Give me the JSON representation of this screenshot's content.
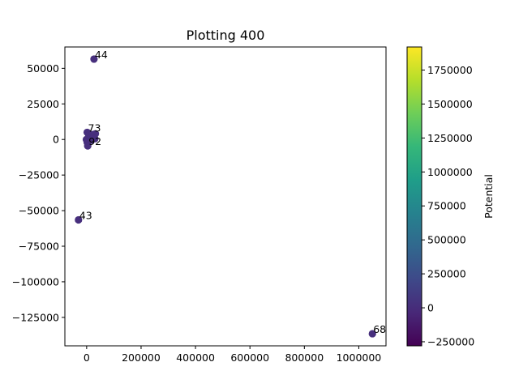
{
  "chart_data": {
    "type": "scatter",
    "title": "Plotting 400",
    "xlabel": "",
    "ylabel": "",
    "xlim": [
      -80000,
      1100000
    ],
    "ylim": [
      -145000,
      65000
    ],
    "xticks": [
      0,
      200000,
      400000,
      600000,
      800000,
      1000000
    ],
    "xtick_labels": [
      "0",
      "200000",
      "400000",
      "600000",
      "800000",
      "1000000"
    ],
    "yticks": [
      50000,
      25000,
      0,
      -25000,
      -50000,
      -75000,
      -100000,
      -125000
    ],
    "ytick_labels": [
      "50000",
      "25000",
      "0",
      "−25000",
      "−50000",
      "−75000",
      "−100000",
      "−125000"
    ],
    "marker_color": "#472f7d",
    "points": [
      {
        "x": 27000,
        "y": 56500,
        "label": "44"
      },
      {
        "x": -30000,
        "y": -56500,
        "label": "43"
      },
      {
        "x": 1050000,
        "y": -136500,
        "label": "68"
      },
      {
        "x": 2000,
        "y": 5000,
        "label": "73"
      },
      {
        "x": 8000,
        "y": 3000,
        "label": ""
      },
      {
        "x": 14000,
        "y": 1500,
        "label": ""
      },
      {
        "x": 20000,
        "y": 3500,
        "label": ""
      },
      {
        "x": 26000,
        "y": 2000,
        "label": ""
      },
      {
        "x": 32000,
        "y": 4000,
        "label": ""
      },
      {
        "x": 11000,
        "y": 500,
        "label": ""
      },
      {
        "x": 18000,
        "y": -500,
        "label": ""
      },
      {
        "x": 24000,
        "y": 1000,
        "label": ""
      },
      {
        "x": 30000,
        "y": 500,
        "label": ""
      },
      {
        "x": -1000,
        "y": 0,
        "label": ""
      },
      {
        "x": 2000,
        "y": -2000,
        "label": ""
      },
      {
        "x": 4000,
        "y": -4500,
        "label": "92"
      }
    ],
    "colorbar": {
      "label": "Potential",
      "min": -280000,
      "max": 1920000,
      "ticks": [
        1750000,
        1500000,
        1250000,
        1000000,
        750000,
        500000,
        250000,
        0,
        -250000
      ],
      "tick_labels": [
        "1750000",
        "1500000",
        "1250000",
        "1000000",
        "750000",
        "500000",
        "250000",
        "0",
        "−250000"
      ],
      "colormap": "viridis",
      "stops": [
        "#440154",
        "#482878",
        "#3e4989",
        "#31688e",
        "#26828e",
        "#1f9e89",
        "#35b779",
        "#6ece58",
        "#b5de2b",
        "#fde725"
      ]
    }
  }
}
